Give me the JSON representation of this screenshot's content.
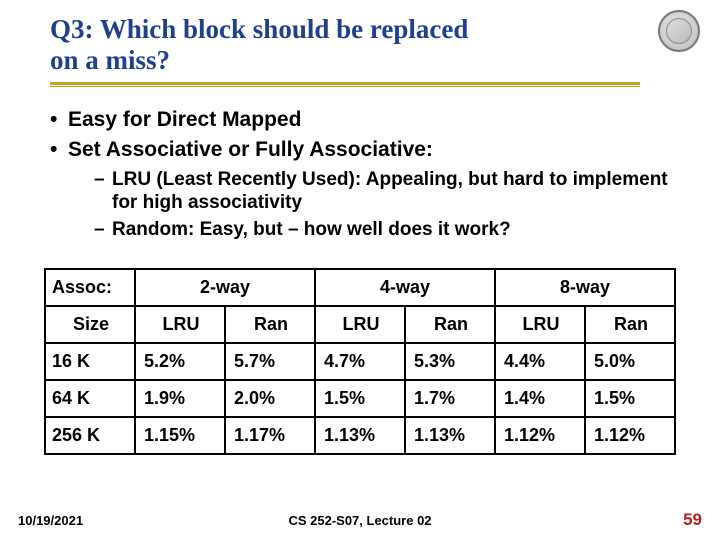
{
  "title_line1": "Q3: Which block should be replaced",
  "title_line2": "on a miss?",
  "colors": {
    "title": "#1f3f8f",
    "underline": "#c9a227",
    "pagenum": "#b22222",
    "table_border": "#000000",
    "background": "#ffffff"
  },
  "bullets": [
    "Easy for Direct Mapped",
    "Set Associative or Fully Associative:"
  ],
  "subbullets": [
    "LRU (Least Recently Used): Appealing, but hard to implement for high associativity",
    "Random: Easy, but – how well does it work?"
  ],
  "table": {
    "assoc_label": "Assoc:",
    "size_label": "Size",
    "groups": [
      "2-way",
      "4-way",
      "8-way"
    ],
    "subheaders": [
      "LRU",
      "Ran"
    ],
    "rows": [
      {
        "size": "16 K",
        "cells": [
          "5.2%",
          "5.7%",
          "4.7%",
          "5.3%",
          "4.4%",
          "5.0%"
        ]
      },
      {
        "size": "64 K",
        "cells": [
          "1.9%",
          "2.0%",
          "1.5%",
          "1.7%",
          "1.4%",
          "1.5%"
        ]
      },
      {
        "size": "256 K",
        "cells": [
          "1.15%",
          "1.17%",
          "1.13%",
          "1.13%",
          "1.12%",
          "1.12%"
        ]
      }
    ]
  },
  "footer": {
    "date": "10/19/2021",
    "course": "CS 252-S07, Lecture 02",
    "pagenum": "59"
  }
}
